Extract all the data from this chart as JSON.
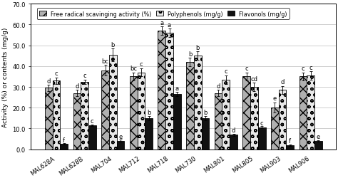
{
  "categories": [
    "MAL628A",
    "MAL628B",
    "MAL704",
    "MAL712",
    "MAL718",
    "MAL730",
    "MAL801",
    "MAL805",
    "MAL903",
    "MAL906"
  ],
  "free_radical": [
    29.5,
    27.0,
    38.0,
    35.0,
    57.0,
    42.0,
    27.0,
    35.0,
    20.0,
    35.0
  ],
  "polyphenols": [
    33.0,
    32.5,
    45.5,
    37.0,
    56.0,
    45.0,
    33.5,
    30.0,
    28.5,
    35.5
  ],
  "flavonols": [
    2.5,
    11.5,
    4.0,
    15.0,
    26.5,
    15.0,
    7.0,
    10.5,
    2.0,
    4.0
  ],
  "free_radical_err": [
    1.5,
    1.5,
    2.5,
    2.0,
    2.0,
    2.0,
    1.5,
    2.0,
    2.5,
    2.0
  ],
  "polyphenols_err": [
    1.5,
    1.0,
    3.0,
    2.0,
    2.0,
    2.0,
    2.0,
    2.0,
    2.0,
    2.0
  ],
  "flavonols_err": [
    0.3,
    0.5,
    0.5,
    1.0,
    1.0,
    1.0,
    0.5,
    0.5,
    0.3,
    0.3
  ],
  "free_radical_labels": [
    "d",
    "d",
    "bc",
    "bc",
    "a",
    "b",
    "d",
    "c",
    "e",
    "c"
  ],
  "polyphenols_labels": [
    "c",
    "c",
    "b",
    "c",
    "a",
    "b",
    "c",
    "cd",
    "d",
    "c"
  ],
  "flavonols_labels": [
    "f",
    "c",
    "e",
    "b",
    "a",
    "b",
    "d",
    "c",
    "f",
    "e"
  ],
  "ylabel": "Activity (%) or contents (mg/g)",
  "ylim": [
    0.0,
    70.0
  ],
  "yticks": [
    0.0,
    10.0,
    20.0,
    30.0,
    40.0,
    50.0,
    60.0,
    70.0
  ],
  "legend_labels": [
    "Free radical scavinging activity (%)",
    "Polyphenols (mg/g)",
    "Flavonols (mg/g)"
  ],
  "bar_width": 0.27,
  "hatch_free": "xx",
  "hatch_poly": "oo",
  "hatch_flav": "",
  "color_free": "#b0b0b0",
  "color_poly": "#e8e8e8",
  "color_flav": "#111111",
  "edge_color": "#000000",
  "background": "#ffffff",
  "font_size_tick": 6.0,
  "font_size_label": 6.5,
  "font_size_legend": 5.8,
  "font_size_annot": 6.0
}
